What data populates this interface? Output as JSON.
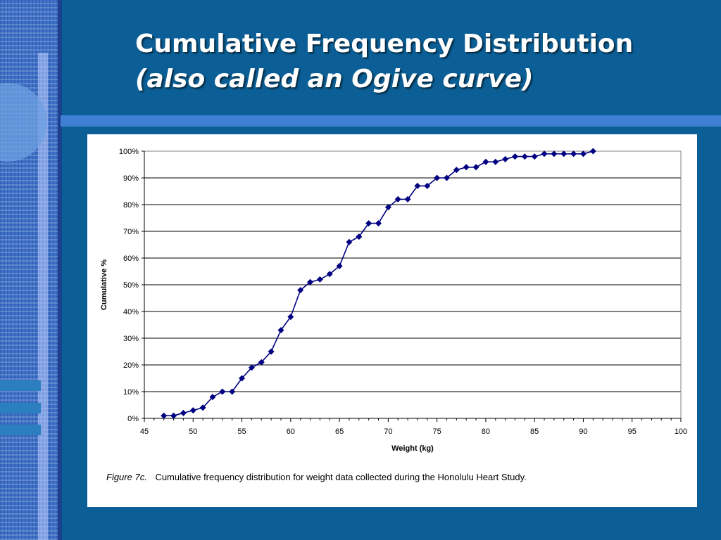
{
  "slide": {
    "title": "Cumulative Frequency Distribution",
    "subtitle": "(also called an Ogive curve)"
  },
  "caption": {
    "figure_label": "Figure 7c.",
    "text": "Cumulative frequency distribution for weight data collected during the Honolulu Heart Study."
  },
  "colors": {
    "background": "#0b5f96",
    "line": "#000080",
    "marker": "#000080",
    "grid": "#000000"
  },
  "chart_data": {
    "type": "line",
    "xlabel": "Weight (kg)",
    "ylabel": "Cumulative %",
    "xlim": [
      45,
      100
    ],
    "ylim": [
      0,
      100
    ],
    "x_ticks": [
      45,
      50,
      55,
      60,
      65,
      70,
      75,
      80,
      85,
      90,
      95,
      100
    ],
    "y_ticks": [
      "0%",
      "10%",
      "20%",
      "30%",
      "40%",
      "50%",
      "60%",
      "70%",
      "80%",
      "90%",
      "100%"
    ],
    "grid": "horizontal",
    "legend": "none",
    "series": [
      {
        "x": [
          47,
          48,
          49,
          50,
          51,
          52,
          53,
          54,
          55,
          56,
          57,
          58,
          59,
          60,
          61,
          62,
          63,
          64,
          65,
          66,
          67,
          68,
          69,
          70,
          71,
          72,
          73,
          74,
          75,
          76,
          77,
          78,
          79,
          80,
          81,
          82,
          83,
          84,
          85,
          86,
          87,
          88,
          89,
          90,
          91
        ],
        "y": [
          1,
          1,
          2,
          3,
          4,
          8,
          10,
          10,
          15,
          19,
          21,
          25,
          33,
          38,
          48,
          51,
          52,
          54,
          57,
          66,
          68,
          73,
          73,
          79,
          82,
          82,
          87,
          87,
          90,
          90,
          93,
          94,
          94,
          96,
          96,
          97,
          98,
          98,
          98,
          99,
          99,
          99,
          99,
          99,
          100
        ]
      }
    ]
  }
}
